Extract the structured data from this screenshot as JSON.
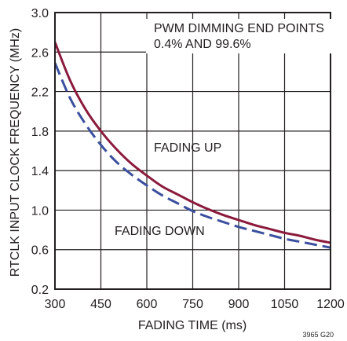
{
  "chart_data": {
    "type": "line",
    "xlabel": "FADING TIME (ms)",
    "ylabel": "RTCLK INPUT CLOCK FREQUENCY (MHz)",
    "xlim": [
      300,
      1200
    ],
    "ylim": [
      0.2,
      3.0
    ],
    "x_ticks": [
      "300",
      "450",
      "600",
      "750",
      "900",
      "1050",
      "1200"
    ],
    "y_ticks": [
      "0.2",
      "0.6",
      "1.0",
      "1.4",
      "1.8",
      "2.2",
      "2.6",
      "3.0"
    ],
    "grid": true,
    "series": [
      {
        "name": "FADING UP",
        "color": "#8b1a3c",
        "style": "solid",
        "x": [
          300,
          350,
          400,
          450,
          500,
          550,
          600,
          650,
          700,
          750,
          800,
          850,
          900,
          950,
          1000,
          1050,
          1100,
          1150,
          1200
        ],
        "y": [
          2.7,
          2.31,
          2.02,
          1.8,
          1.62,
          1.47,
          1.35,
          1.24,
          1.16,
          1.08,
          1.01,
          0.95,
          0.9,
          0.85,
          0.81,
          0.77,
          0.74,
          0.7,
          0.67
        ]
      },
      {
        "name": "FADING DOWN",
        "color": "#3a4f9e",
        "style": "dashed",
        "x": [
          300,
          350,
          400,
          450,
          500,
          550,
          600,
          650,
          700,
          750,
          800,
          850,
          900,
          950,
          1000,
          1050,
          1100,
          1150,
          1200
        ],
        "y": [
          2.49,
          2.13,
          1.87,
          1.66,
          1.49,
          1.36,
          1.25,
          1.15,
          1.07,
          0.99,
          0.93,
          0.88,
          0.83,
          0.79,
          0.75,
          0.71,
          0.68,
          0.65,
          0.62
        ]
      }
    ],
    "annotations": {
      "title_line1": "PWM DIMMING END POINTS",
      "title_line2": "0.4% AND 99.6%",
      "fading_up": "FADING UP",
      "fading_down": "FADING DOWN",
      "code": "3965 G20"
    }
  }
}
